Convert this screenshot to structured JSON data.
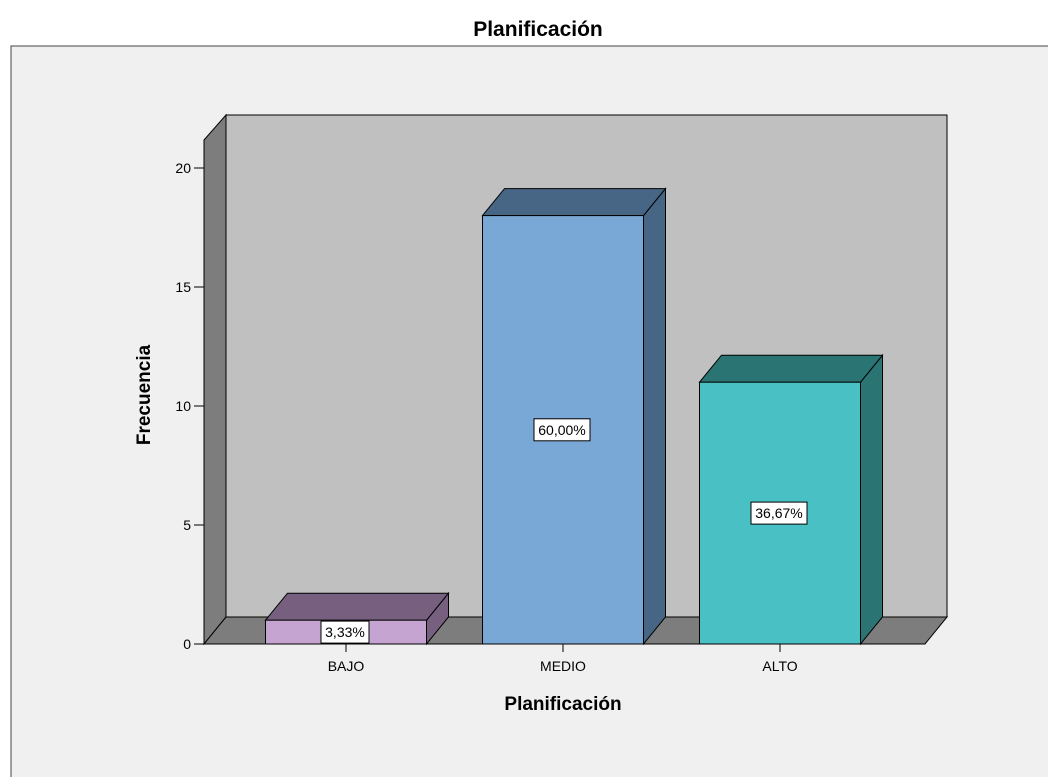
{
  "chart_data": {
    "type": "bar",
    "title": "Planificación",
    "xlabel": "Planificación",
    "ylabel": "Frecuencia",
    "categories": [
      "BAJO",
      "MEDIO",
      "ALTO"
    ],
    "values": [
      1,
      18,
      11
    ],
    "data_labels": [
      "3,33%",
      "60,00%",
      "36,67%"
    ],
    "ylim": [
      0,
      20
    ],
    "yticks": [
      "0",
      "5",
      "10",
      "15",
      "20"
    ],
    "grid": false,
    "style": "3d",
    "colors": {
      "page_bg": "#f0f0f0",
      "frame_border": "#444444",
      "back_wall": "#c0c0c0",
      "side_wall": "#7d7d7d",
      "floor": "#7d7d7d",
      "bars": [
        {
          "front": "#c6a4d1",
          "top": "#77607f",
          "side": "#77607f"
        },
        {
          "front": "#7aa8d6",
          "top": "#476685",
          "side": "#476685"
        },
        {
          "front": "#48c0c4",
          "top": "#2b7474",
          "side": "#2b7474"
        }
      ]
    }
  }
}
